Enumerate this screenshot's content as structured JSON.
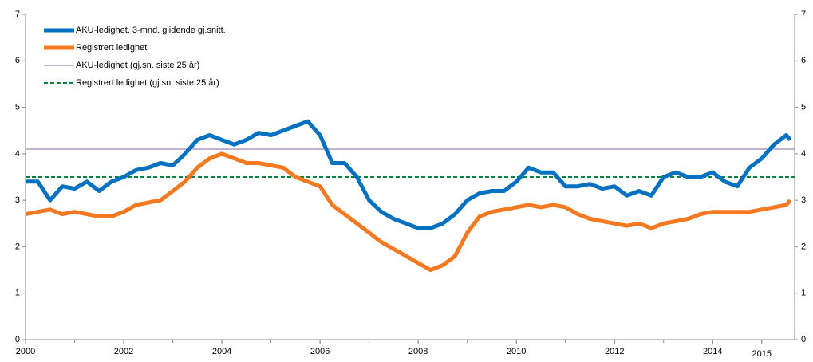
{
  "chart_data": {
    "type": "line",
    "x": [
      2000,
      2000.25,
      2000.5,
      2000.75,
      2001,
      2001.25,
      2001.5,
      2001.75,
      2002,
      2002.25,
      2002.5,
      2002.75,
      2003,
      2003.25,
      2003.5,
      2003.75,
      2004,
      2004.25,
      2004.5,
      2004.75,
      2005,
      2005.25,
      2005.5,
      2005.75,
      2006,
      2006.25,
      2006.5,
      2006.75,
      2007,
      2007.25,
      2007.5,
      2007.75,
      2008,
      2008.25,
      2008.5,
      2008.75,
      2009,
      2009.25,
      2009.5,
      2009.75,
      2010,
      2010.25,
      2010.5,
      2010.75,
      2011,
      2011.25,
      2011.5,
      2011.75,
      2012,
      2012.25,
      2012.5,
      2012.75,
      2013,
      2013.25,
      2013.5,
      2013.75,
      2014,
      2014.25,
      2014.5,
      2014.75,
      2015,
      2015.25,
      2015.5,
      2015.58
    ],
    "series": [
      {
        "name": "AKU-ledighet. 3-mnd. glidende gj.snitt.",
        "color": "#0070c0",
        "values": [
          3.4,
          3.4,
          3.0,
          3.3,
          3.25,
          3.4,
          3.2,
          3.4,
          3.5,
          3.65,
          3.7,
          3.8,
          3.75,
          4.0,
          4.3,
          4.4,
          4.3,
          4.2,
          4.3,
          4.45,
          4.4,
          4.5,
          4.6,
          4.7,
          4.4,
          3.8,
          3.8,
          3.5,
          3.0,
          2.75,
          2.6,
          2.5,
          2.4,
          2.4,
          2.5,
          2.7,
          3.0,
          3.15,
          3.2,
          3.2,
          3.4,
          3.7,
          3.6,
          3.6,
          3.3,
          3.3,
          3.35,
          3.25,
          3.3,
          3.1,
          3.2,
          3.1,
          3.5,
          3.6,
          3.5,
          3.5,
          3.6,
          3.4,
          3.3,
          3.7,
          3.9,
          4.2,
          4.4,
          4.3
        ]
      },
      {
        "name": "Registrert ledighet",
        "color": "#f47920",
        "values": [
          2.7,
          2.75,
          2.8,
          2.7,
          2.75,
          2.7,
          2.65,
          2.65,
          2.75,
          2.9,
          2.95,
          3.0,
          3.2,
          3.4,
          3.7,
          3.9,
          4.0,
          3.9,
          3.8,
          3.8,
          3.75,
          3.7,
          3.5,
          3.4,
          3.3,
          2.9,
          2.7,
          2.5,
          2.3,
          2.1,
          1.95,
          1.8,
          1.65,
          1.5,
          1.6,
          1.8,
          2.3,
          2.65,
          2.75,
          2.8,
          2.85,
          2.9,
          2.85,
          2.9,
          2.85,
          2.7,
          2.6,
          2.55,
          2.5,
          2.45,
          2.5,
          2.4,
          2.5,
          2.55,
          2.6,
          2.7,
          2.75,
          2.75,
          2.75,
          2.75,
          2.8,
          2.85,
          2.9,
          3.0
        ]
      }
    ],
    "hlines": [
      {
        "name": "AKU-ledighet (gj.sn. siste 25 år)",
        "color": "#8064a2",
        "value": 4.1,
        "dashed": false
      },
      {
        "name": "Registrert ledighet (gj.sn. siste 25 år)",
        "color": "#00843d",
        "value": 3.5,
        "dashed": true
      }
    ],
    "xlim": [
      2000,
      2015.67
    ],
    "xticks": [
      2000,
      2002,
      2004,
      2006,
      2008,
      2010,
      2012,
      2014,
      2015
    ],
    "ylim": [
      0,
      7
    ],
    "yticks": [
      0,
      1,
      2,
      3,
      4,
      5,
      6,
      7
    ],
    "y2lim": [
      0,
      7
    ],
    "y2ticks": [
      0,
      1,
      2,
      3,
      4,
      5,
      6,
      7
    ],
    "legend": "upper left"
  }
}
